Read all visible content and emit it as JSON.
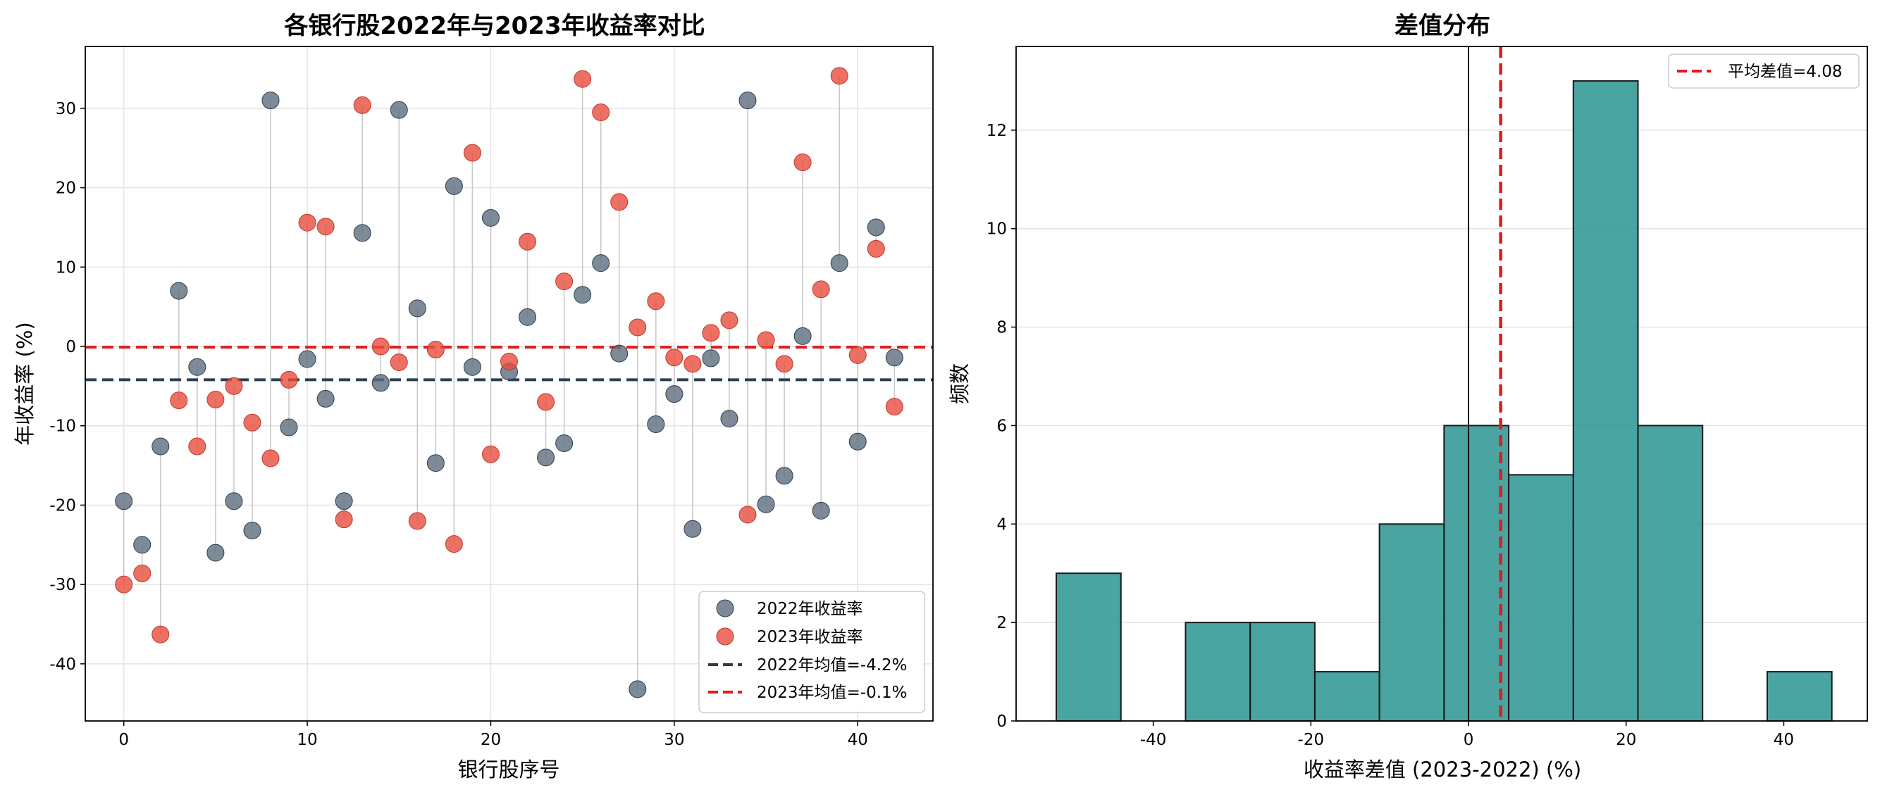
{
  "chart_data": [
    {
      "type": "scatter",
      "title": "各银行股2022年与2023年收益率对比",
      "xlabel": "银行股序号",
      "ylabel": "年收益率 (%)",
      "xlim": [
        -2.1,
        44.1
      ],
      "ylim": [
        -47.2,
        37.8
      ],
      "xticks": [
        0,
        10,
        20,
        30,
        40
      ],
      "yticks": [
        -40,
        -30,
        -20,
        -10,
        0,
        10,
        20,
        30
      ],
      "grid": true,
      "legend_position": "lower-right",
      "series": [
        {
          "name": "2022年收益率",
          "color": "#5d6d7e",
          "x": [
            0,
            1,
            2,
            3,
            4,
            5,
            6,
            7,
            8,
            9,
            10,
            11,
            12,
            13,
            14,
            15,
            16,
            17,
            18,
            19,
            20,
            21,
            22,
            23,
            24,
            25,
            26,
            27,
            28,
            29,
            30,
            31,
            32,
            33,
            34,
            35,
            36,
            37,
            38,
            39,
            40,
            41,
            42
          ],
          "y": [
            -19.5,
            -25.0,
            -12.6,
            7.0,
            -2.6,
            -26.0,
            -19.5,
            -23.2,
            31.0,
            -10.2,
            -1.6,
            -6.6,
            -19.5,
            14.3,
            -4.6,
            29.8,
            4.8,
            -14.7,
            20.2,
            -2.6,
            16.2,
            -3.2,
            3.7,
            -14.0,
            -12.2,
            6.5,
            10.5,
            -0.9,
            -43.2,
            -9.8,
            -6.0,
            -23.0,
            -1.5,
            -9.1,
            31.0,
            -19.9,
            -16.3,
            1.3,
            -20.7,
            10.5,
            -12.0,
            15.0,
            -1.4
          ]
        },
        {
          "name": "2023年收益率",
          "color": "#e74c3c",
          "x": [
            0,
            1,
            2,
            3,
            4,
            5,
            6,
            7,
            8,
            9,
            10,
            11,
            12,
            13,
            14,
            15,
            16,
            17,
            18,
            19,
            20,
            21,
            22,
            23,
            24,
            25,
            26,
            27,
            28,
            29,
            30,
            31,
            32,
            33,
            34,
            35,
            36,
            37,
            38,
            39,
            40,
            41,
            42
          ],
          "y": [
            -30.0,
            -28.6,
            -36.3,
            -6.8,
            -12.6,
            -6.7,
            -5.0,
            -9.6,
            -14.1,
            -4.2,
            15.6,
            15.1,
            -21.8,
            30.4,
            0.0,
            -2.0,
            -22.0,
            -0.4,
            -24.9,
            24.4,
            -13.6,
            -1.9,
            13.2,
            -7.0,
            8.2,
            33.7,
            29.5,
            18.2,
            2.4,
            5.7,
            -1.4,
            -2.2,
            1.7,
            3.3,
            -21.2,
            0.8,
            -2.2,
            23.2,
            7.2,
            34.1,
            -1.1,
            12.3,
            -7.6
          ]
        }
      ],
      "reference_lines": [
        {
          "name": "2022年均值=-4.2%",
          "y": -4.2,
          "color": "#2c3e50"
        },
        {
          "name": "2023年均值=-0.1%",
          "y": -0.1,
          "color": "#e31a1c"
        }
      ]
    },
    {
      "type": "bar",
      "title": "差值分布",
      "xlabel": "收益率差值 (2023-2022) (%)",
      "ylabel": "频数",
      "xlim": [
        -57.4,
        50.6
      ],
      "ylim": [
        0,
        13.7
      ],
      "xticks": [
        -40,
        -20,
        0,
        20,
        40
      ],
      "yticks": [
        0,
        2,
        4,
        6,
        8,
        10,
        12
      ],
      "grid": true,
      "bar_color": "#2a9490",
      "legend_position": "top-right",
      "bins": [
        {
          "x0": -52.3,
          "x1": -44.1,
          "count": 3
        },
        {
          "x0": -44.1,
          "x1": -35.9,
          "count": 0
        },
        {
          "x0": -35.9,
          "x1": -27.7,
          "count": 2
        },
        {
          "x0": -27.7,
          "x1": -19.5,
          "count": 2
        },
        {
          "x0": -19.5,
          "x1": -11.3,
          "count": 1
        },
        {
          "x0": -11.3,
          "x1": -3.1,
          "count": 4
        },
        {
          "x0": -3.1,
          "x1": 5.1,
          "count": 6
        },
        {
          "x0": 5.1,
          "x1": 13.3,
          "count": 5
        },
        {
          "x0": 13.3,
          "x1": 21.5,
          "count": 13
        },
        {
          "x0": 21.5,
          "x1": 29.7,
          "count": 6
        },
        {
          "x0": 29.7,
          "x1": 37.9,
          "count": 0
        },
        {
          "x0": 37.9,
          "x1": 46.1,
          "count": 1
        }
      ],
      "zero_line": 0,
      "mean_line": {
        "name": "平均差值=4.08",
        "x": 4.08,
        "color": "#e31a1c"
      }
    }
  ]
}
